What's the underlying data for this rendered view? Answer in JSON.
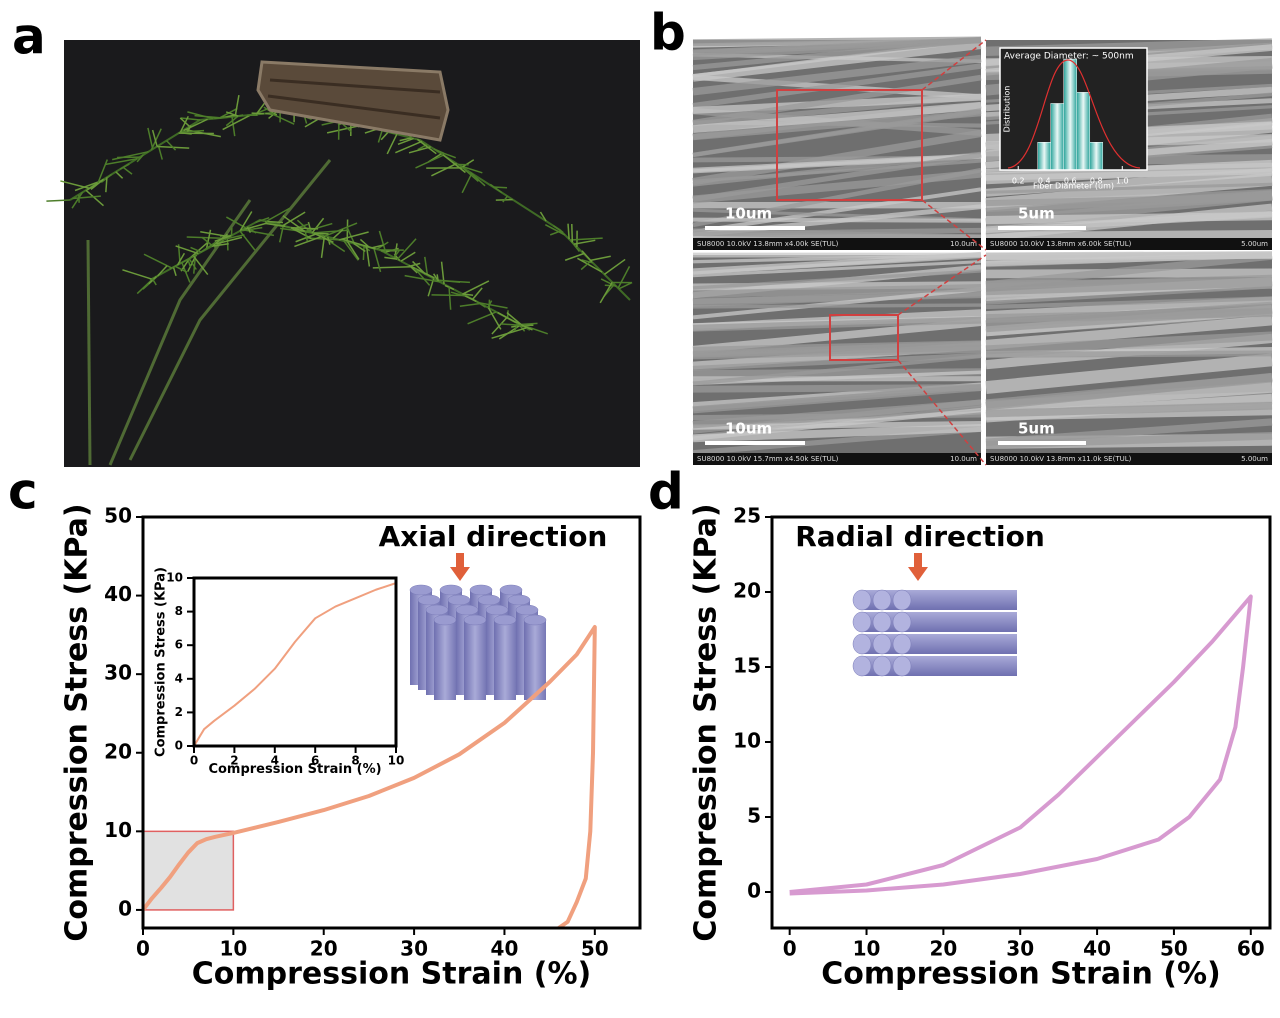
{
  "panels": {
    "a": {
      "label": "a"
    },
    "b": {
      "label": "b",
      "tiles": [
        {
          "scale_bar": "10um",
          "info": "SU8000 10.0kV 13.8mm x4.00k SE(TUL)",
          "scale": "10.0um"
        },
        {
          "scale_bar": "5um",
          "info": "SU8000 10.0kV 13.8mm x6.00k SE(TUL)",
          "scale": "5.00um"
        },
        {
          "scale_bar": "10um",
          "info": "SU8000 10.0kV 15.7mm x4.50k SE(TUL)",
          "scale": "10.0um"
        },
        {
          "scale_bar": "5um",
          "info": "SU8000 10.0kV 13.8mm x11.0k SE(TUL)",
          "scale": "5.00um"
        }
      ]
    },
    "c": {
      "label": "c"
    },
    "d": {
      "label": "d"
    }
  },
  "chart_data": [
    {
      "type": "line",
      "annotation": "Axial direction",
      "x_label": "Compression Strain (%)",
      "y_label": "Compression Stress (KPa)",
      "xlim": [
        0,
        55
      ],
      "ylim": [
        -2.3,
        50
      ],
      "xticks": [
        0,
        10,
        20,
        30,
        40,
        50
      ],
      "yticks": [
        0,
        10,
        20,
        30,
        40,
        50
      ],
      "x": [
        0,
        1,
        2,
        3,
        4,
        5,
        6,
        7,
        8,
        10,
        15,
        20,
        25,
        30,
        35,
        40,
        45,
        48,
        50,
        49.8,
        49.5,
        49,
        48,
        47,
        46
      ],
      "series": [
        {
          "color": "#f0a07f",
          "values": [
            0,
            1.5,
            2.8,
            4.2,
            5.8,
            7.3,
            8.5,
            9,
            9.3,
            9.8,
            11.2,
            12.7,
            14.5,
            16.8,
            19.8,
            23.8,
            29,
            32.5,
            36,
            20,
            10,
            4,
            1,
            -1.5,
            -2.3
          ]
        }
      ]
    },
    {
      "type": "line",
      "x_label": "Compression Strain (%)",
      "y_label": "Compression Stress (KPa)",
      "xlim": [
        0,
        10
      ],
      "ylim": [
        0,
        10
      ],
      "xticks": [
        0,
        2,
        4,
        6,
        8,
        10
      ],
      "yticks": [
        0,
        2,
        4,
        6,
        8,
        10
      ],
      "x": [
        0,
        0.5,
        1,
        2,
        3,
        4,
        5,
        6,
        7,
        8,
        9,
        10
      ],
      "series": [
        {
          "color": "#f0a07f",
          "values": [
            0,
            1,
            1.5,
            2.4,
            3.4,
            4.6,
            6.2,
            7.6,
            8.3,
            8.8,
            9.3,
            9.7
          ]
        }
      ]
    },
    {
      "type": "line",
      "annotation": "Radial direction",
      "x_label": "Compression Strain (%)",
      "y_label": "Compression Stress (KPa)",
      "xlim": [
        -2.3,
        62.5
      ],
      "ylim": [
        -2.4,
        25
      ],
      "xticks": [
        0,
        10,
        20,
        30,
        40,
        50,
        60
      ],
      "yticks": [
        0,
        5,
        10,
        15,
        20,
        25
      ],
      "x": [
        0,
        10,
        20,
        30,
        35,
        40,
        45,
        50,
        55,
        60,
        59,
        58,
        56,
        52,
        48,
        40,
        30,
        20,
        10,
        0
      ],
      "series": [
        {
          "color": "#d79ad0",
          "values": [
            0,
            0.5,
            1.8,
            4.3,
            6.5,
            9,
            11.5,
            14,
            16.7,
            19.7,
            15,
            11,
            7.5,
            5,
            3.5,
            2.2,
            1.2,
            0.5,
            0.1,
            -0.1
          ]
        }
      ]
    },
    {
      "type": "histogram",
      "annotation": "Average Diameter:  ~ 500nm",
      "x_label": "Fiber Diameter (um)",
      "y_label": "Distribution",
      "xlim": [
        0.06,
        1.19
      ],
      "ylim": [
        0,
        110
      ],
      "xticks": [
        0.2,
        0.4,
        0.6,
        0.8,
        {
          "value": 1,
          "label": "1.0"
        }
      ],
      "bins": [
        0.35,
        0.45,
        0.55,
        0.65,
        0.75,
        0.85
      ],
      "values": [
        25,
        60,
        100,
        70,
        25
      ],
      "color": "#5fbfb5"
    }
  ]
}
